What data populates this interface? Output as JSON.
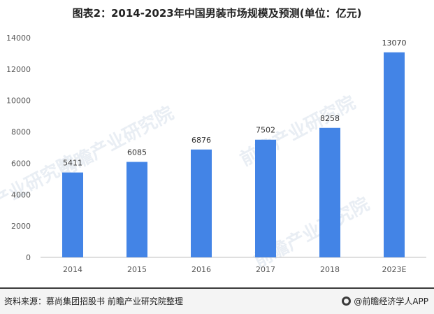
{
  "title": "图表2：2014-2023年中国男装市场规模及预测(单位：亿元)",
  "chart_data": {
    "type": "bar",
    "title": "图表2：2014-2023年中国男装市场规模及预测(单位：亿元)",
    "categories": [
      "2014",
      "2015",
      "2016",
      "2017",
      "2018",
      "2023E"
    ],
    "values": [
      5411,
      6085,
      6876,
      7502,
      8258,
      13070
    ],
    "data_labels": [
      "5411",
      "6085",
      "6876",
      "7502",
      "8258",
      "13070"
    ],
    "yticks": [
      "0",
      "2000",
      "4000",
      "6000",
      "8000",
      "10000",
      "12000",
      "14000"
    ],
    "ylim": [
      0,
      14000
    ],
    "xlabel": "",
    "ylabel": "",
    "bar_color": "#4384e6",
    "grid": false,
    "legend": "none"
  },
  "watermark": "前瞻产业研究院",
  "footer": {
    "source": "资料来源：慕尚集团招股书 前瞻产业研究院整理",
    "brand": "@前瞻经济学人APP"
  }
}
